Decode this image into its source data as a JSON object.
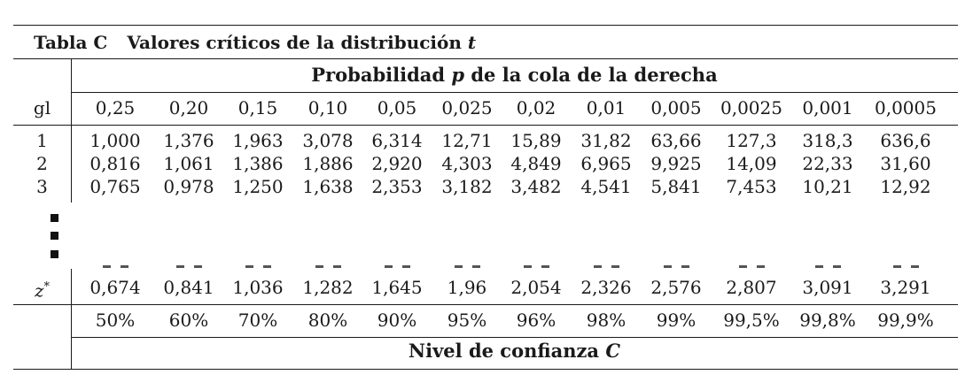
{
  "title": {
    "label": "Tabla C",
    "text": "Valores críticos de la distribución",
    "variable": "t"
  },
  "probability_header": {
    "before": "Probabilidad ",
    "variable": "p",
    "after": " de la cola de la derecha"
  },
  "confidence_header": {
    "before": "Nivel de confianza ",
    "variable": "C"
  },
  "row_label_header": "gl",
  "tail_probabilities": [
    "0,25",
    "0,20",
    "0,15",
    "0,10",
    "0,05",
    "0,025",
    "0,02",
    "0,01",
    "0,005",
    "0,0025",
    "0,001",
    "0,0005"
  ],
  "rows": [
    {
      "gl": "1",
      "values": [
        "1,000",
        "1,376",
        "1,963",
        "3,078",
        "6,314",
        "12,71",
        "15,89",
        "31,82",
        "63,66",
        "127,3",
        "318,3",
        "636,6"
      ]
    },
    {
      "gl": "2",
      "values": [
        "0,816",
        "1,061",
        "1,386",
        "1,886",
        "2,920",
        "4,303",
        "4,849",
        "6,965",
        "9,925",
        "14,09",
        "22,33",
        "31,60"
      ]
    },
    {
      "gl": "3",
      "values": [
        "0,765",
        "0,978",
        "1,250",
        "1,638",
        "2,353",
        "3,182",
        "3,482",
        "4,541",
        "5,841",
        "7,453",
        "10,21",
        "12,92"
      ]
    }
  ],
  "z_row": {
    "label": "z",
    "superscript": "*",
    "values": [
      "0,674",
      "0,841",
      "1,036",
      "1,282",
      "1,645",
      "1,96",
      "2,054",
      "2,326",
      "2,576",
      "2,807",
      "3,091",
      "3,291"
    ]
  },
  "confidence_levels": [
    "50%",
    "60%",
    "70%",
    "80%",
    "90%",
    "95%",
    "96%",
    "98%",
    "99%",
    "99,5%",
    "99,8%",
    "99,9%"
  ]
}
